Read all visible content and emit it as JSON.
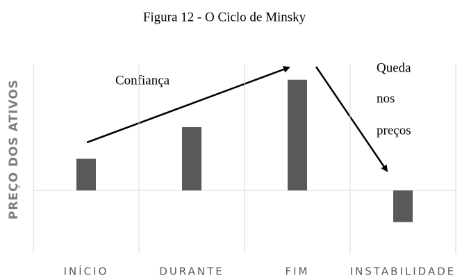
{
  "chart_data": {
    "type": "bar",
    "title": "Figura 12 - O Ciclo de Minsky",
    "y_label": "PREÇO DOS ATIVOS",
    "categories": [
      "INÍCIO",
      "DURANTE",
      "FIM",
      "INSTABILIDADE"
    ],
    "values": [
      1,
      2,
      3.5,
      -1
    ],
    "color": "#595959",
    "ylim": [
      -2,
      4
    ],
    "annotations": [
      "Confiança",
      "Queda",
      "nos",
      "preços"
    ]
  }
}
